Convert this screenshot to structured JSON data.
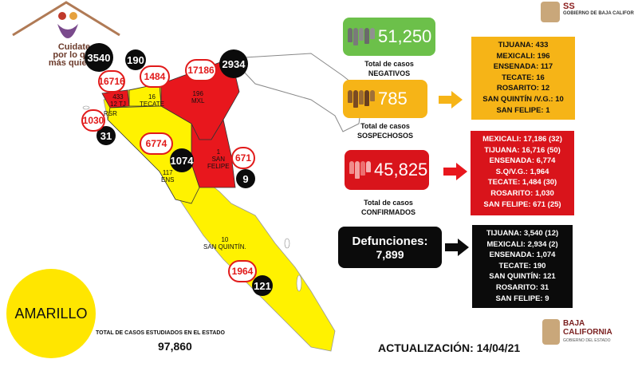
{
  "header": {
    "campaign_logo_text": [
      "Cuidate",
      "por lo que",
      "más quieres"
    ],
    "agency_abbr": "SS",
    "agency_name": "GOBIERNO DE BAJA CALIFOR"
  },
  "map": {
    "regions": [
      {
        "name": "TJ",
        "label_lines": [
          "433",
          "12 TJ"
        ],
        "color": "#e8171d"
      },
      {
        "name": "RSR",
        "label_lines": [
          "RSR"
        ],
        "color": "#fff200"
      },
      {
        "name": "TECATE",
        "label_lines": [
          "16",
          "TECATE"
        ],
        "color": "#fff200"
      },
      {
        "name": "MXL",
        "label_lines": [
          "196",
          "MXL"
        ],
        "color": "#e8171d"
      },
      {
        "name": "ENS",
        "label_lines": [
          "117",
          "ENS"
        ],
        "color": "#fff200"
      },
      {
        "name": "SAN FELIPE",
        "label_lines": [
          "1",
          "SAN",
          "FELIPE"
        ],
        "color": "#e8171d"
      },
      {
        "name": "SAN QUINTIN",
        "label_lines": [
          "10",
          "SAN QUINTÍN."
        ],
        "color": "#fff200"
      }
    ],
    "deaths_circles": {
      "tijuana": "3540",
      "tecate": "190",
      "mexicali": "2934",
      "rosarito": "31",
      "ensenada": "1074",
      "san_felipe": "9",
      "san_quintin": "121"
    },
    "confirmed_circles": {
      "tijuana": "16716",
      "tecate": "1484",
      "mexicali": "17186",
      "rosarito": "1030",
      "ensenada": "6774",
      "san_felipe": "671",
      "san_quintin": "1964"
    }
  },
  "stats": {
    "negatives": {
      "value": "51,250",
      "caption": [
        "Total de casos",
        "NEGATIVOS"
      ],
      "color": "#6cc04a"
    },
    "suspected": {
      "value": "785",
      "caption": [
        "Total de casos",
        "SOSPECHOSOS"
      ],
      "color": "#f6b417"
    },
    "confirmed": {
      "value": "45,825",
      "caption": [
        "Total de casos",
        "CONFIRMADOS"
      ],
      "color": "#d9141b"
    },
    "deaths": {
      "title": "Defunciones:",
      "value": "7,899",
      "color": "#0b0b0b"
    }
  },
  "lists": {
    "suspected": [
      "TIJUANA: 433",
      "MEXICALI: 196",
      "ENSENADA: 117",
      "TECATE: 16",
      "ROSARITO: 12",
      "SAN QUINTÍN /V.G.: 10",
      "SAN FELIPE: 1"
    ],
    "confirmed": [
      "MEXICALI: 17,186 (32)",
      "TIJUANA: 16,716 (50)",
      "ENSENADA: 6,774",
      "S.Q/V.G.: 1,964",
      "TECATE: 1,484 (30)",
      "ROSARITO: 1,030",
      "SAN FELIPE: 671 (25)"
    ],
    "deaths": [
      "TIJUANA: 3,540 (12)",
      "MEXICALI: 2,934 (2)",
      "ENSENADA: 1,074",
      "TECATE: 190",
      "SAN QUINTÍN: 121",
      "ROSARITO: 31",
      "SAN FELIPE: 9"
    ]
  },
  "footer": {
    "status_level": "AMARILLO",
    "status_color": "#ffe600",
    "total_label": "TOTAL DE CASOS ESTUDIADOS EN EL ESTADO",
    "total_value": "97,860",
    "update_text": "ACTUALIZACIÓN: 14/04/21",
    "bc_logo_line1": "BAJA",
    "bc_logo_line2": "CALIFORNIA",
    "bc_logo_sub": "GOBIERNO DEL ESTADO"
  }
}
